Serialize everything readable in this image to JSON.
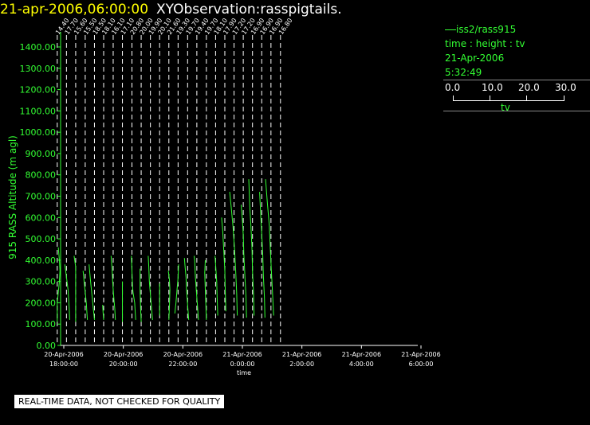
{
  "title": {
    "datetime": "21-apr-2006,06:00:00",
    "observation": "XYObservation:rasspigtails."
  },
  "legend": {
    "series": "iss2/rass915",
    "axes": "time : height : tv",
    "date": "21-Apr-2006",
    "time": "5:32:49",
    "scale_ticks": [
      "0.0",
      "10.0",
      "20.0",
      "30.0"
    ],
    "scale_label": "tv"
  },
  "notice": "REAL-TIME DATA, NOT CHECKED FOR QUALITY",
  "colors": {
    "trace": "#33ff33",
    "axis_labels": "#33ff33",
    "title_datetime": "#ffff00",
    "background": "#000000",
    "dashed_lines": "#ffffff"
  },
  "chart_data": {
    "type": "line",
    "ylabel": "915 RASS Altitude (m agl)",
    "xlabel": "time",
    "y_ticks": [
      "0.00",
      "100.00",
      "200.00",
      "300.00",
      "400.00",
      "500.00",
      "600.00",
      "700.00",
      "800.00",
      "900.00",
      "1000.00",
      "1100.00",
      "1200.00",
      "1300.00",
      "1400.00"
    ],
    "ylim": [
      0,
      1400
    ],
    "x_tick_labels": [
      {
        "date": "20-Apr-2006",
        "time": "18:00:00"
      },
      {
        "date": "20-Apr-2006",
        "time": "20:00:00"
      },
      {
        "date": "20-Apr-2006",
        "time": "22:00:00"
      },
      {
        "date": "21-Apr-2006",
        "time": "0:00:00"
      },
      {
        "date": "21-Apr-2006",
        "time": "2:00:00"
      },
      {
        "date": "21-Apr-2006",
        "time": "4:00:00"
      },
      {
        "date": "21-Apr-2006",
        "time": "6:00:00"
      }
    ],
    "xlim_hours": [
      17.7,
      24.3
    ],
    "tv_per_hour_width": 30,
    "profiles": [
      {
        "base": 17.78,
        "label": "14.40",
        "points": [
          [
            0.0,
            110
          ],
          [
            0.0,
            200
          ],
          [
            2.0,
            300
          ],
          [
            2.5,
            350
          ],
          [
            2.0,
            400
          ],
          [
            1.0,
            460
          ]
        ]
      },
      {
        "base": 18.09,
        "label": "17.70",
        "points": [
          [
            3.0,
            120
          ],
          [
            2.5,
            180
          ],
          [
            1.5,
            260
          ],
          [
            0.5,
            300
          ],
          [
            -0.5,
            340
          ],
          [
            -1.5,
            380
          ]
        ]
      },
      {
        "base": 18.4,
        "label": "15.60",
        "points": [
          [
            0.0,
            110
          ],
          [
            0.0,
            220
          ],
          [
            0.0,
            370
          ],
          [
            -1.5,
            420
          ]
        ]
      },
      {
        "base": 18.72,
        "label": "15.50",
        "points": [
          [
            2.0,
            120
          ],
          [
            1.5,
            160
          ],
          [
            1.0,
            200
          ],
          [
            0.0,
            250
          ],
          [
            -1.0,
            300
          ],
          [
            -2.0,
            350
          ]
        ]
      },
      {
        "base": 19.03,
        "label": "18.50",
        "points": [
          [
            0.0,
            120
          ],
          [
            -1.0,
            170
          ],
          [
            -2.0,
            220
          ],
          [
            -3.0,
            270
          ],
          [
            -4.0,
            320
          ],
          [
            -5.0,
            380
          ]
        ]
      },
      {
        "base": 19.34,
        "label": "18.10",
        "points": [
          [
            0.0,
            120
          ],
          [
            -0.5,
            150
          ],
          [
            -1.0,
            190
          ]
        ]
      },
      {
        "base": 19.66,
        "label": "16.10",
        "points": [
          [
            2.0,
            120
          ],
          [
            1.5,
            170
          ],
          [
            0.5,
            230
          ],
          [
            -0.5,
            300
          ],
          [
            -1.0,
            360
          ],
          [
            -2.0,
            420
          ]
        ]
      },
      {
        "base": 19.97,
        "label": "17.10",
        "points": [
          [
            0.0,
            110
          ],
          [
            0.0,
            200
          ],
          [
            0.0,
            300
          ]
        ]
      },
      {
        "base": 20.29,
        "label": "20.80",
        "points": [
          [
            3.5,
            120
          ],
          [
            2.5,
            200
          ],
          [
            1.0,
            250
          ],
          [
            0.5,
            280
          ],
          [
            0.0,
            350
          ],
          [
            -0.5,
            420
          ]
        ]
      },
      {
        "base": 20.6,
        "label": "20.00",
        "points": [
          [
            0.0,
            110
          ],
          [
            -0.5,
            170
          ],
          [
            -1.0,
            260
          ],
          [
            -1.0,
            360
          ]
        ]
      },
      {
        "base": 20.91,
        "label": "19.90",
        "points": [
          [
            2.0,
            120
          ],
          [
            1.0,
            180
          ],
          [
            0.0,
            240
          ],
          [
            -1.0,
            300
          ],
          [
            -1.5,
            370
          ],
          [
            -2.0,
            420
          ]
        ]
      },
      {
        "base": 21.22,
        "label": "20.10",
        "points": [
          [
            0.0,
            140
          ],
          [
            0.0,
            230
          ],
          [
            0.0,
            290
          ]
        ]
      },
      {
        "base": 21.53,
        "label": "21.60",
        "points": [
          [
            0.0,
            120
          ],
          [
            0.5,
            180
          ],
          [
            1.0,
            260
          ],
          [
            0.5,
            310
          ],
          [
            -0.5,
            350
          ]
        ]
      },
      {
        "base": 21.84,
        "label": "19.30",
        "points": [
          [
            -3.0,
            150
          ],
          [
            -2.0,
            200
          ],
          [
            -1.0,
            260
          ],
          [
            0.0,
            320
          ],
          [
            0.5,
            380
          ]
        ]
      },
      {
        "base": 22.16,
        "label": "19.70",
        "points": [
          [
            1.0,
            120
          ],
          [
            0.0,
            190
          ],
          [
            -1.0,
            260
          ],
          [
            -1.5,
            320
          ],
          [
            -2.5,
            380
          ],
          [
            -3.0,
            410
          ]
        ]
      },
      {
        "base": 22.47,
        "label": "19.40",
        "points": [
          [
            1.5,
            120
          ],
          [
            0.5,
            190
          ],
          [
            -0.5,
            260
          ],
          [
            -1.5,
            330
          ],
          [
            -2.0,
            400
          ],
          [
            -2.5,
            420
          ]
        ]
      },
      {
        "base": 22.79,
        "label": "19.70",
        "points": [
          [
            0.0,
            120
          ],
          [
            -0.5,
            190
          ],
          [
            -1.0,
            260
          ],
          [
            -1.5,
            340
          ],
          [
            -1.0,
            400
          ]
        ]
      },
      {
        "base": 23.1,
        "label": "18.10",
        "points": [
          [
            2.0,
            140
          ],
          [
            1.5,
            220
          ],
          [
            1.0,
            300
          ],
          [
            0.0,
            380
          ],
          [
            -0.5,
            420
          ]
        ]
      },
      {
        "base": 23.41,
        "label": "17.90",
        "points": [
          [
            1.0,
            160
          ],
          [
            0.5,
            250
          ],
          [
            0.0,
            350
          ],
          [
            -1.0,
            450
          ],
          [
            -2.0,
            540
          ],
          [
            -3.0,
            600
          ]
        ]
      },
      {
        "base": 23.72,
        "label": "17.20",
        "points": [
          [
            3.0,
            140
          ],
          [
            2.5,
            240
          ],
          [
            1.5,
            350
          ],
          [
            0.5,
            450
          ],
          [
            -1.0,
            560
          ],
          [
            -2.5,
            640
          ],
          [
            -4.0,
            720
          ]
        ]
      },
      {
        "base": 24.03,
        "label": "17.20",
        "points": [
          [
            3.0,
            130
          ],
          [
            2.5,
            230
          ],
          [
            1.5,
            330
          ],
          [
            0.5,
            430
          ],
          [
            0.0,
            520
          ],
          [
            -1.0,
            600
          ],
          [
            -2.0,
            660
          ]
        ]
      },
      {
        "base": 24.34,
        "label": "16.90",
        "points": [
          [
            1.5,
            140
          ],
          [
            1.0,
            240
          ],
          [
            0.0,
            350
          ],
          [
            -0.5,
            460
          ],
          [
            -1.5,
            560
          ],
          [
            -2.5,
            650
          ],
          [
            -3.5,
            780
          ]
        ]
      },
      {
        "base": 24.65,
        "label": "16.90",
        "points": [
          [
            3.0,
            130
          ],
          [
            2.5,
            230
          ],
          [
            1.5,
            330
          ],
          [
            1.0,
            420
          ],
          [
            0.0,
            520
          ],
          [
            -1.0,
            620
          ],
          [
            -2.0,
            720
          ]
        ]
      },
      {
        "base": 24.96,
        "label": "16.90",
        "points": [
          [
            2.5,
            140
          ],
          [
            1.5,
            240
          ],
          [
            0.5,
            340
          ],
          [
            -0.5,
            440
          ],
          [
            -1.5,
            560
          ],
          [
            -3.5,
            680
          ],
          [
            -5.0,
            780
          ]
        ]
      },
      {
        "base": 25.28,
        "label": "16.80",
        "points": []
      }
    ]
  }
}
